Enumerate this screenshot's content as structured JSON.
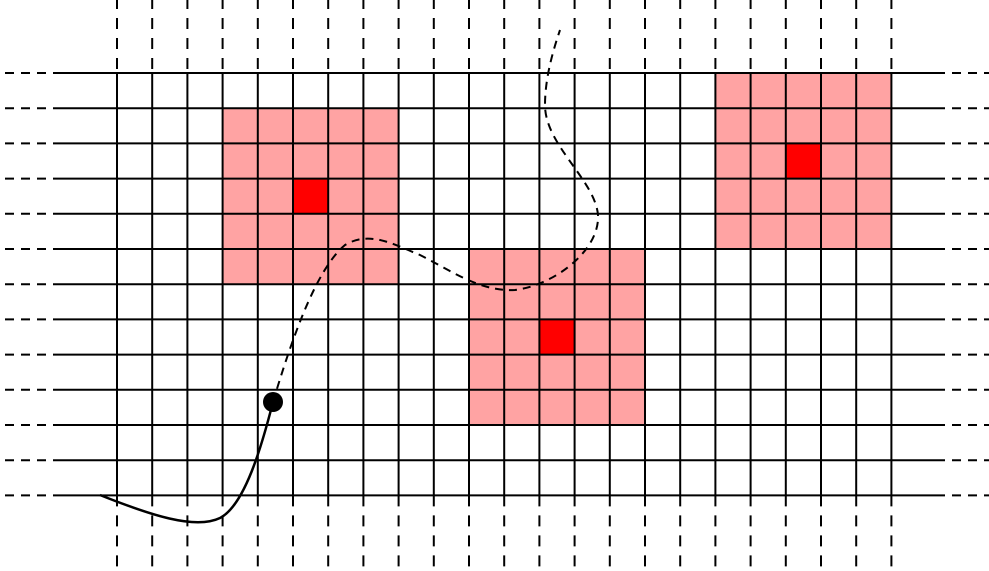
{
  "grid": {
    "columns": 22,
    "rows": 13,
    "line_color": "#000000",
    "dashed_extensions": true
  },
  "regions": [
    {
      "name": "region-left",
      "center_cell": {
        "col": 5,
        "row": 3
      },
      "extent_cols": [
        3,
        7
      ],
      "extent_rows": [
        1,
        5
      ]
    },
    {
      "name": "region-middle",
      "center_cell": {
        "col": 12,
        "row": 7
      },
      "extent_cols": [
        10,
        14
      ],
      "extent_rows": [
        5,
        9
      ]
    },
    {
      "name": "region-right",
      "center_cell": {
        "col": 19,
        "row": 2
      },
      "extent_cols": [
        17,
        21
      ],
      "extent_rows": [
        0,
        4
      ]
    }
  ],
  "colors": {
    "region_fill": "#ffa3a3",
    "center_fill": "#ff0000",
    "path": "#000000",
    "marker": "#000000",
    "background": "#ffffff"
  },
  "trajectory": {
    "traveled_style": "solid",
    "planned_style": "dashed",
    "marker": "filled-circle"
  }
}
